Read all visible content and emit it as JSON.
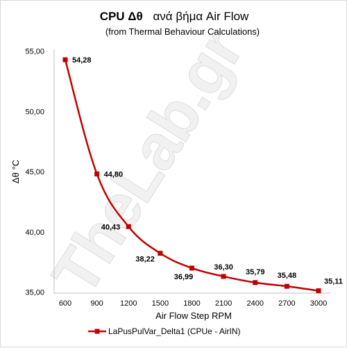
{
  "chart_data": {
    "type": "line",
    "title": "CPU  Δθ",
    "title_rest": "ανά βήμα Air Flow",
    "subtitle": "(from Thermal Behaviour Calculations)",
    "xlabel": "Air Flow Step RPM",
    "ylabel": "Δθ °C",
    "x": [
      "600",
      "900",
      "1200",
      "1500",
      "1800",
      "2100",
      "2400",
      "2700",
      "3000"
    ],
    "series": [
      {
        "name": "LaPusPulVar_Delta1 (CPUe - AirIN)",
        "color": "#c00000",
        "values": [
          54.28,
          44.8,
          40.43,
          38.22,
          36.99,
          36.3,
          35.79,
          35.48,
          35.11
        ],
        "labels": [
          "54,28",
          "44,80",
          "40,43",
          "38,22",
          "36,99",
          "36,30",
          "35,79",
          "35,48",
          "35,11"
        ]
      }
    ],
    "ylim": [
      35,
      55
    ],
    "yticks": [
      "35,00",
      "40,00",
      "45,00",
      "50,00",
      "55,00"
    ],
    "grid": false,
    "legend_position": "bottom",
    "watermark": "TheLab.gr"
  }
}
